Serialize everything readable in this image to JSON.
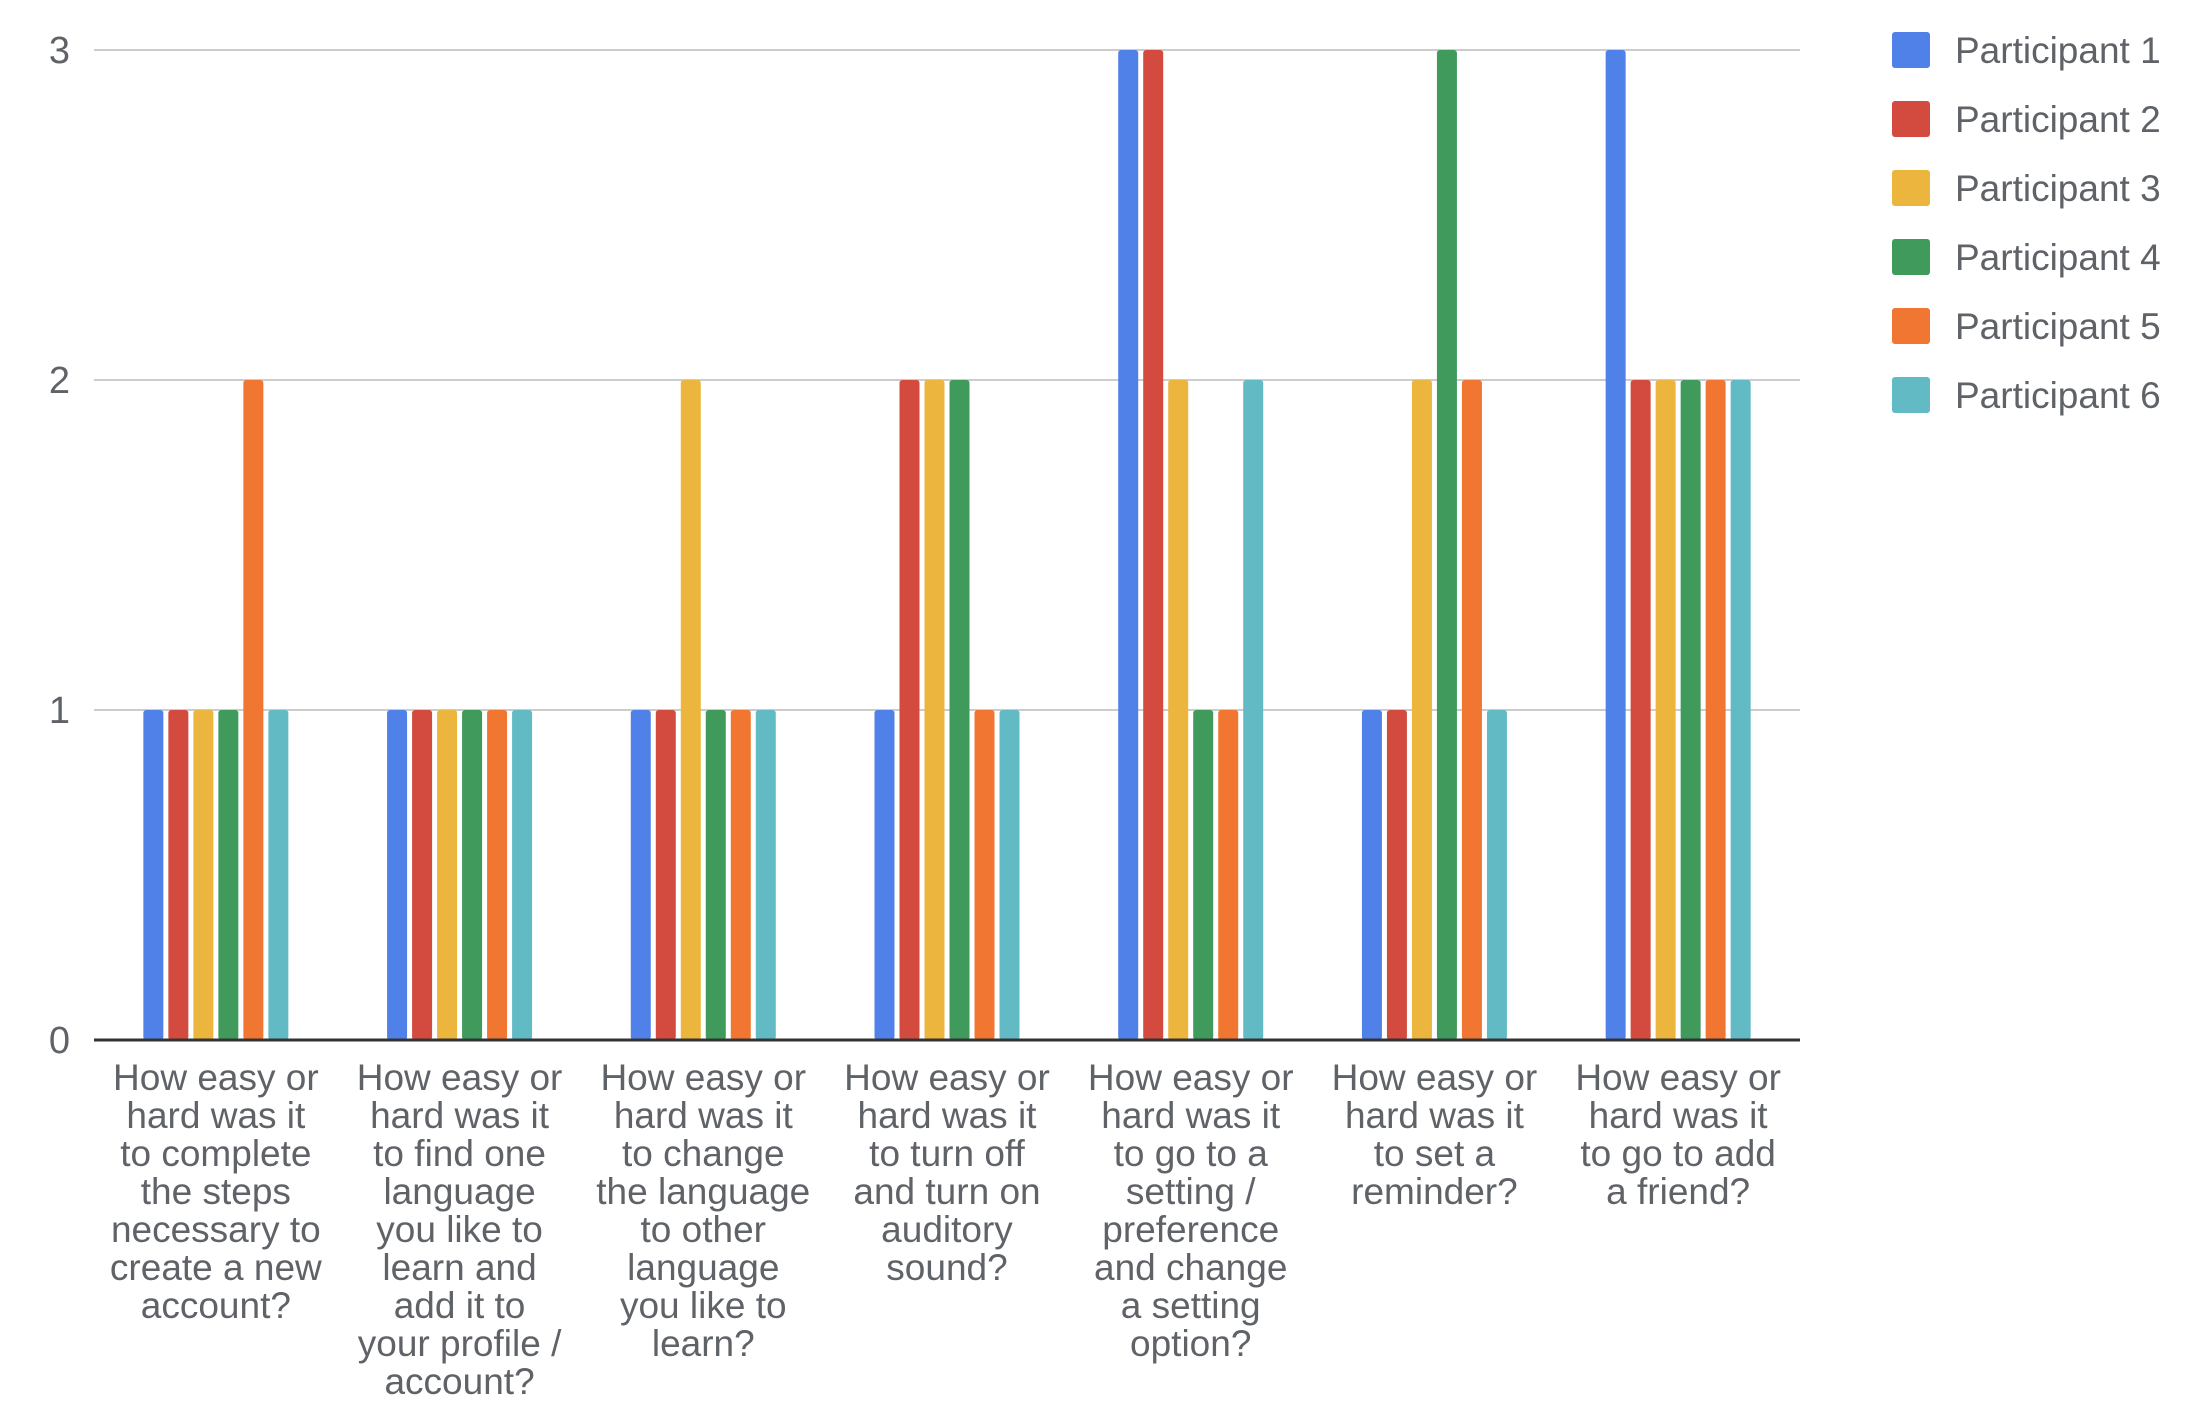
{
  "chart_data": {
    "type": "bar",
    "title": "",
    "xlabel": "",
    "ylabel": "",
    "ylim": [
      0,
      3
    ],
    "yticks": [
      0,
      1,
      2,
      3
    ],
    "grid": true,
    "legend_position": "right",
    "categories": [
      [
        "How easy or",
        "hard was it",
        "to complete",
        "the steps",
        "necessary to",
        "create a new",
        "account?"
      ],
      [
        "How easy or",
        "hard was it",
        "to find one",
        "language",
        "you like to",
        "learn and",
        "add it to",
        "your profile /",
        "account?"
      ],
      [
        "How easy or",
        "hard was it",
        "to change",
        "the language",
        "to other",
        "language",
        "you like to",
        "learn?"
      ],
      [
        "How easy or",
        "hard was it",
        "to turn off",
        "and turn on",
        "auditory",
        "sound?"
      ],
      [
        "How easy or",
        "hard was it",
        "to go to a",
        "setting /",
        "preference",
        "and change",
        "a setting",
        "option?"
      ],
      [
        "How easy or",
        "hard was it",
        "to set a",
        "reminder?"
      ],
      [
        "How easy or",
        "hard was it",
        "to go to add",
        "a friend?"
      ]
    ],
    "series": [
      {
        "name": "Participant 1",
        "color": "#4f81e8",
        "values": [
          1,
          1,
          1,
          1,
          3,
          1,
          3
        ]
      },
      {
        "name": "Participant 2",
        "color": "#d24b3e",
        "values": [
          1,
          1,
          1,
          2,
          3,
          1,
          2
        ]
      },
      {
        "name": "Participant 3",
        "color": "#ecb53d",
        "values": [
          1,
          1,
          2,
          2,
          2,
          2,
          2
        ]
      },
      {
        "name": "Participant 4",
        "color": "#3f9a5c",
        "values": [
          1,
          1,
          1,
          2,
          1,
          3,
          2
        ]
      },
      {
        "name": "Participant 5",
        "color": "#f07632",
        "values": [
          2,
          1,
          1,
          1,
          1,
          2,
          2
        ]
      },
      {
        "name": "Participant 6",
        "color": "#62bac4",
        "values": [
          1,
          1,
          1,
          1,
          2,
          1,
          2
        ]
      }
    ]
  }
}
